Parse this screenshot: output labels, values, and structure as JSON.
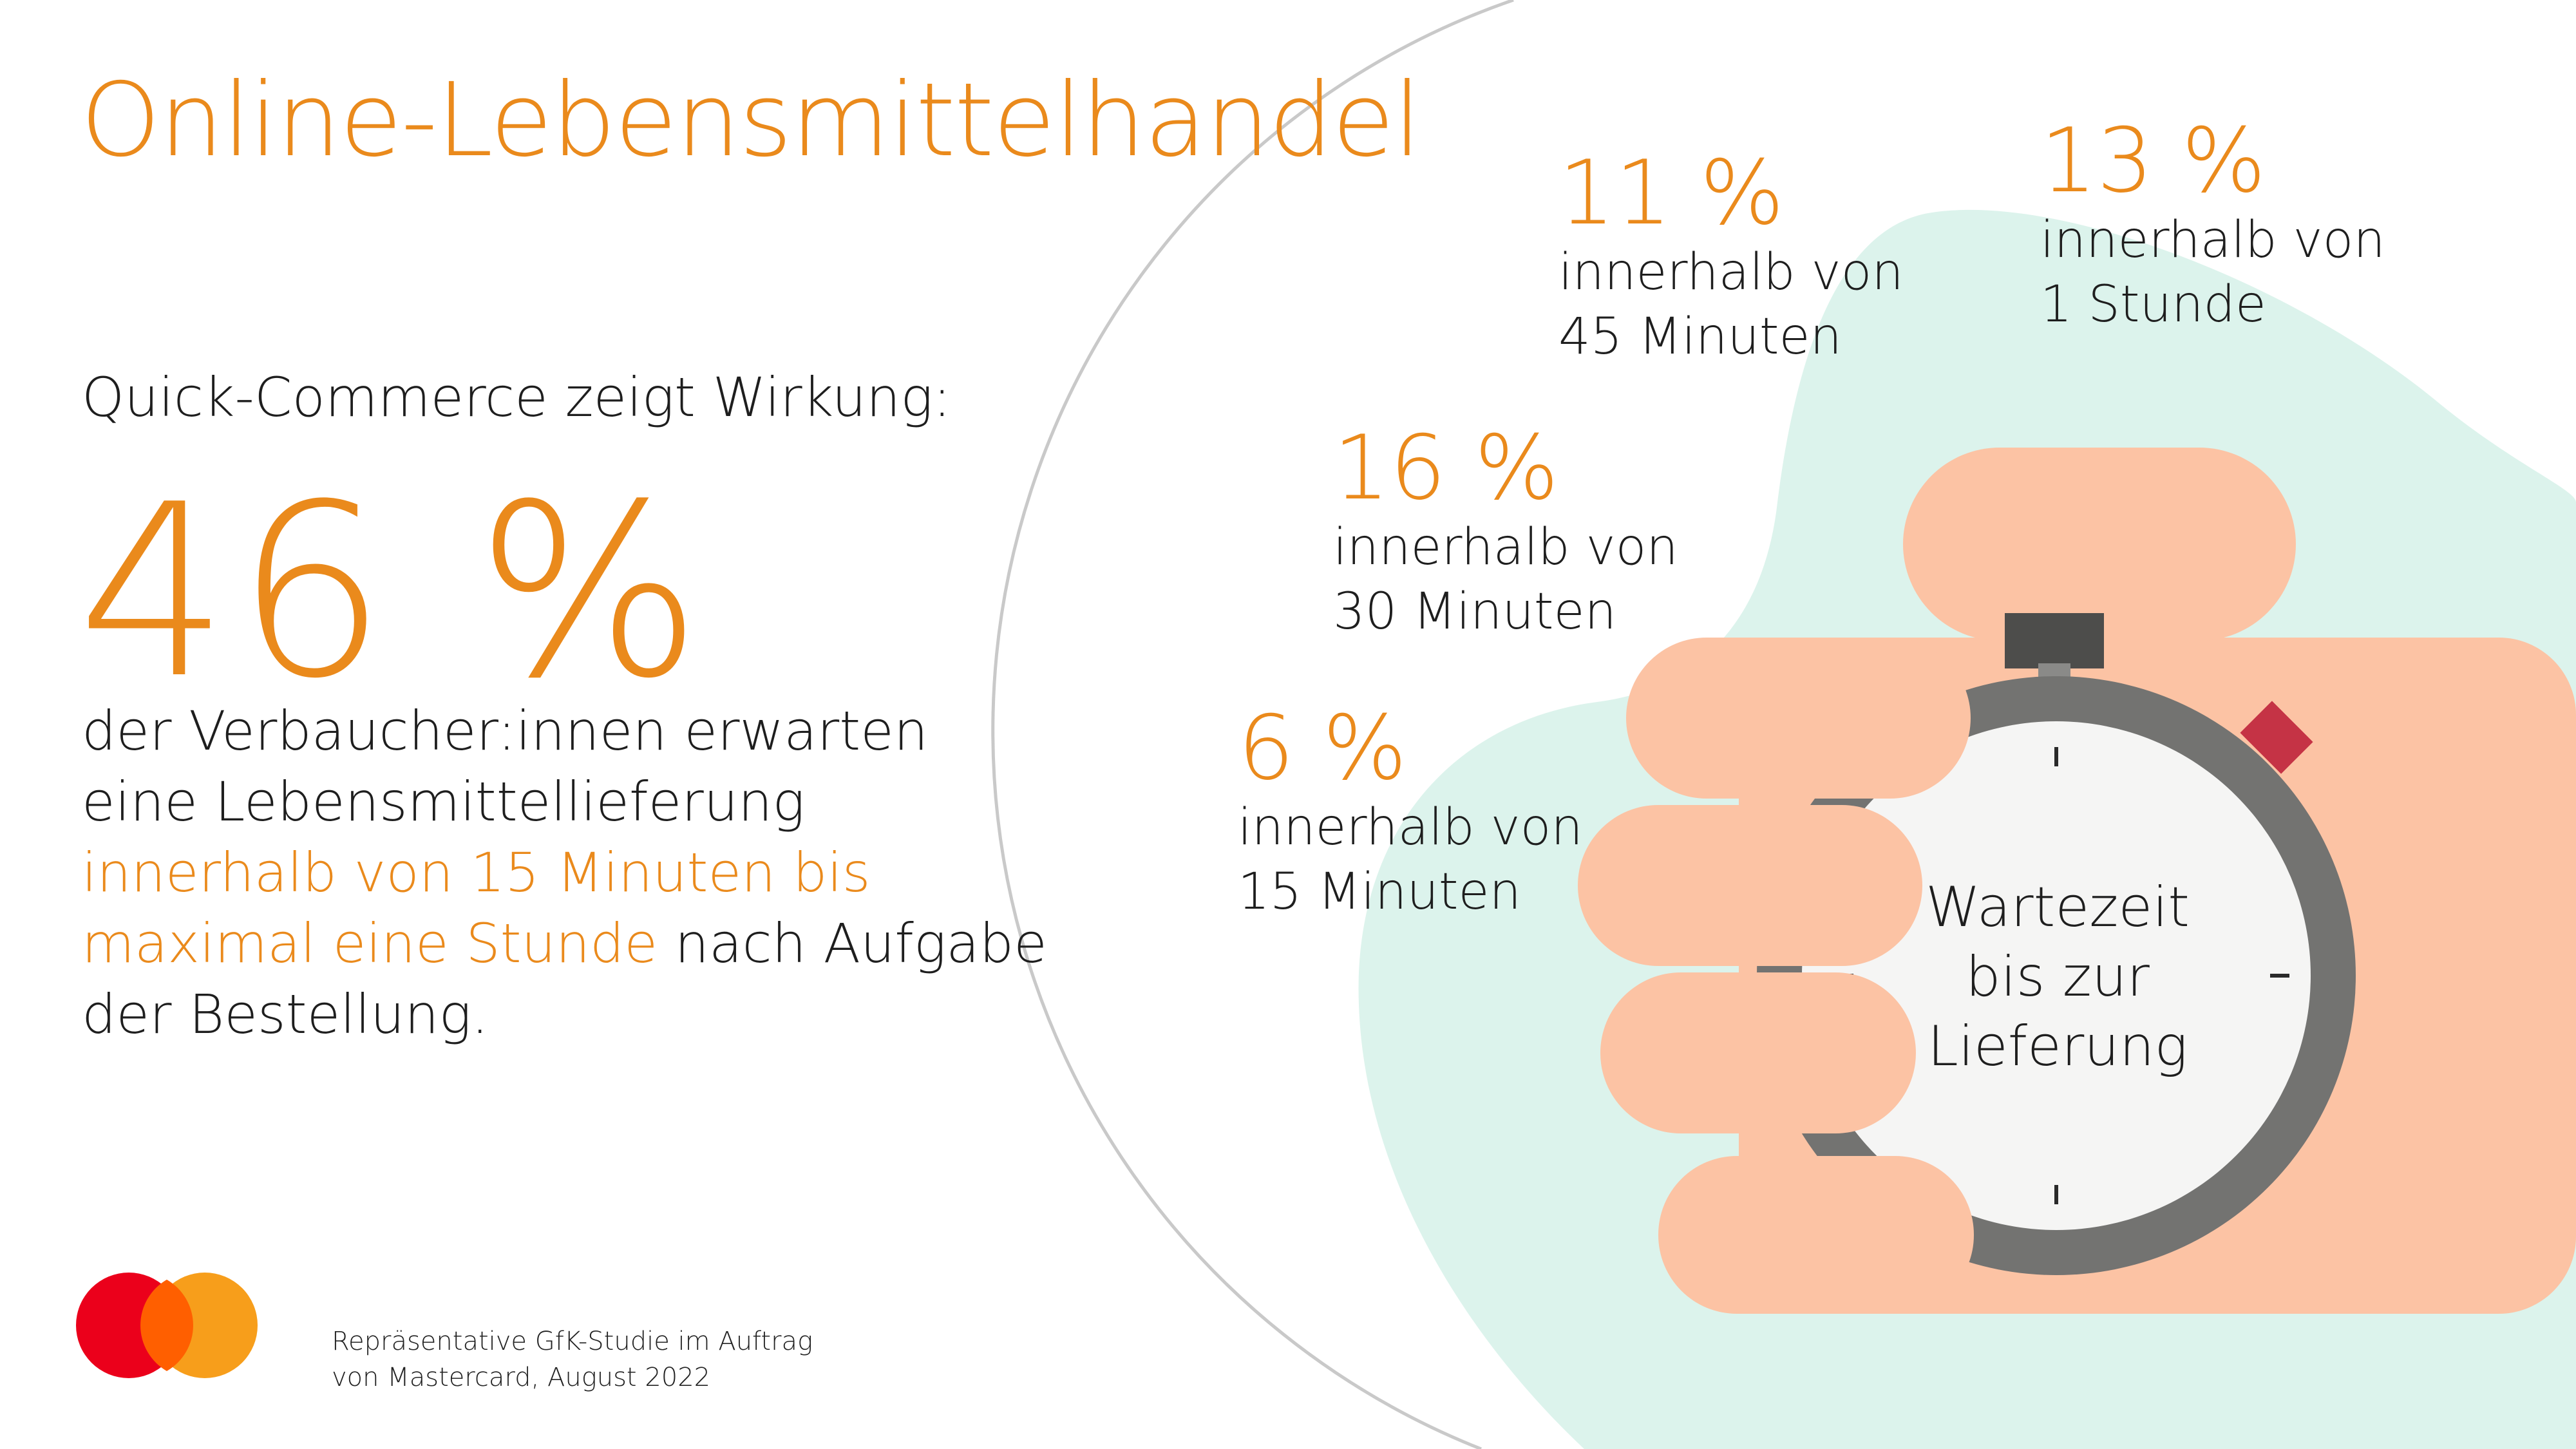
{
  "title": "Online-Lebensmittelhandel",
  "subtitle": "Quick-Commerce zeigt Wirkung:",
  "headline_number": "46 %",
  "paragraph": {
    "part1": "der Verbaucher:innen erwarten eine Lebensmittellieferung ",
    "highlight": "innerhalb von 15 Minuten bis maximal eine Stunde",
    "part2": " nach Aufgabe der Bestellung."
  },
  "stats": [
    {
      "percent": "11 %",
      "label": "innerhalb von\n45 Minuten"
    },
    {
      "percent": "13 %",
      "label": "innerhalb von\n1 Stunde"
    },
    {
      "percent": "16 %",
      "label": "innerhalb von\n30 Minuten"
    },
    {
      "percent": "6 %",
      "label": "innerhalb von\n15 Minuten"
    }
  ],
  "stopwatch_label": "Wartezeit\nbis zur\nLieferung",
  "source": "Repräsentative GfK-Studie im Auftrag\nvon Mastercard, August 2022",
  "colors": {
    "accent_orange": "#ea8a1c",
    "mint": "#dcf3ec",
    "hand": "#fcc3a4",
    "stopwatch_gray": "#737371",
    "stopwatch_face": "#f5f5f4",
    "button_red": "#c53345",
    "mastercard_red": "#eb001b",
    "mastercard_yellow": "#f79e1b",
    "mastercard_overlap": "#ff5f00"
  },
  "logo": "mastercard-logo"
}
